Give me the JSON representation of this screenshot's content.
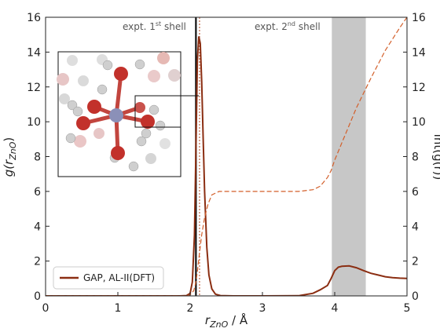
{
  "chart_data": {
    "type": "line",
    "xlabel_main": "r",
    "xlabel_sub": "ZnO",
    "xlabel_unit": " / Å",
    "ylabel_main": "g(r",
    "ylabel_sub": "ZnO",
    "ylabel_close": ")",
    "y2label": "int(g(r))",
    "xlim": [
      0,
      5
    ],
    "ylim": [
      0,
      16
    ],
    "y2lim": [
      0,
      16
    ],
    "x_ticks": [
      0,
      1,
      2,
      3,
      4,
      5
    ],
    "x_tick_labels": [
      "0",
      "1",
      "2",
      "3",
      "4",
      "5"
    ],
    "y_ticks": [
      0,
      2,
      4,
      6,
      8,
      10,
      12,
      14,
      16
    ],
    "y_tick_labels": [
      "0",
      "2",
      "4",
      "6",
      "8",
      "10",
      "12",
      "14",
      "16"
    ],
    "y2_ticks": [
      0,
      2,
      4,
      6,
      8,
      10,
      12,
      14,
      16
    ],
    "y2_tick_labels": [
      "0",
      "2",
      "4",
      "6",
      "8",
      "10",
      "12",
      "14",
      "16"
    ],
    "annotations": {
      "first_shell_prefix": "expt. 1",
      "first_shell_sup": "st",
      "first_shell_suffix": " shell",
      "second_shell_prefix": "expt. 2",
      "second_shell_sup": "nd",
      "second_shell_suffix": " shell"
    },
    "legend": {
      "label": "GAP, AL-II(DFT)",
      "placement": "lower-left"
    },
    "expt_first_shell_x": 2.08,
    "model_first_peak_x": 2.13,
    "expt_second_shell_range": [
      3.96,
      4.43
    ],
    "series": [
      {
        "name": "GAP, AL-II(DFT)",
        "axis": "left",
        "style": "solid",
        "color": "#8b2e12",
        "x": [
          0,
          1.85,
          1.95,
          2.0,
          2.03,
          2.06,
          2.08,
          2.1,
          2.12,
          2.14,
          2.16,
          2.18,
          2.2,
          2.23,
          2.26,
          2.3,
          2.35,
          2.42,
          2.6,
          3.0,
          3.5,
          3.7,
          3.8,
          3.9,
          3.95,
          4.0,
          4.05,
          4.1,
          4.2,
          4.3,
          4.4,
          4.5,
          4.6,
          4.7,
          4.8,
          4.9,
          5.0
        ],
        "y": [
          0,
          0,
          0.02,
          0.15,
          0.8,
          3.5,
          8.5,
          13.5,
          14.9,
          14.5,
          12.3,
          9.0,
          6.0,
          2.8,
          1.2,
          0.4,
          0.1,
          0.02,
          0,
          0,
          0.01,
          0.15,
          0.35,
          0.6,
          1.0,
          1.45,
          1.65,
          1.7,
          1.72,
          1.62,
          1.45,
          1.3,
          1.2,
          1.1,
          1.05,
          1.02,
          1.0
        ]
      },
      {
        "name": "int(g(r))",
        "axis": "right",
        "style": "dashed",
        "color": "#d35f2a",
        "x": [
          0,
          1.95,
          2.0,
          2.05,
          2.08,
          2.1,
          2.13,
          2.16,
          2.2,
          2.25,
          2.3,
          2.4,
          2.5,
          3.0,
          3.5,
          3.7,
          3.8,
          3.9,
          3.95,
          4.0,
          4.1,
          4.2,
          4.3,
          4.5,
          4.7,
          4.9,
          5.0
        ],
        "y": [
          0,
          0,
          0.05,
          0.3,
          0.8,
          1.4,
          2.5,
          3.5,
          4.5,
          5.3,
          5.8,
          6.0,
          6.0,
          6.0,
          6.0,
          6.1,
          6.3,
          6.8,
          7.2,
          7.8,
          8.8,
          9.8,
          10.8,
          12.5,
          14.1,
          15.4,
          16.0
        ]
      }
    ]
  }
}
